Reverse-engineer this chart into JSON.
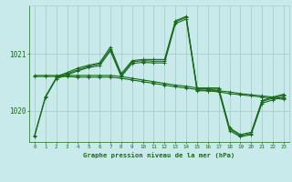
{
  "title": "Graphe pression niveau de la mer (hPa)",
  "bg_color": "#c8eaea",
  "grid_color": "#a8cece",
  "line_color": "#1a6b1a",
  "ylim": [
    1019.45,
    1021.85
  ],
  "yticks": [
    1020,
    1021
  ],
  "xlim": [
    -0.5,
    23.5
  ],
  "xticks": [
    0,
    1,
    2,
    3,
    4,
    5,
    6,
    7,
    8,
    9,
    10,
    11,
    12,
    13,
    14,
    15,
    16,
    17,
    18,
    19,
    20,
    21,
    22,
    23
  ],
  "series": [
    {
      "x": [
        0,
        1,
        2,
        3,
        4,
        5,
        6,
        7,
        8,
        9,
        10,
        11,
        12,
        13,
        14,
        15,
        16,
        17,
        18,
        19,
        20,
        21,
        22,
        23
      ],
      "y": [
        1019.57,
        1020.25,
        1020.58,
        1020.65,
        1020.72,
        1020.78,
        1020.82,
        1021.08,
        1020.62,
        1020.86,
        1020.88,
        1020.87,
        1020.87,
        1021.56,
        1021.64,
        1020.38,
        1020.38,
        1020.38,
        1019.68,
        1019.56,
        1019.6,
        1020.16,
        1020.22,
        1020.27
      ]
    },
    {
      "x": [
        2,
        3,
        4,
        5,
        6,
        7,
        8,
        9,
        10,
        11,
        12,
        13,
        14,
        15,
        16,
        17,
        18,
        19,
        20,
        21,
        22,
        23
      ],
      "y": [
        1020.6,
        1020.67,
        1020.75,
        1020.8,
        1020.84,
        1021.12,
        1020.65,
        1020.88,
        1020.9,
        1020.9,
        1020.9,
        1021.58,
        1021.66,
        1020.4,
        1020.4,
        1020.4,
        1019.7,
        1019.58,
        1019.62,
        1020.18,
        1020.24,
        1020.29
      ]
    },
    {
      "x": [
        0,
        1,
        2,
        3,
        4,
        5,
        6,
        7,
        8,
        9,
        10,
        11,
        12,
        13,
        14,
        15,
        16,
        17,
        18,
        19,
        20,
        21,
        22,
        23
      ],
      "y": [
        1020.62,
        1020.62,
        1020.62,
        1020.62,
        1020.62,
        1020.62,
        1020.62,
        1020.62,
        1020.6,
        1020.57,
        1020.54,
        1020.51,
        1020.48,
        1020.45,
        1020.43,
        1020.4,
        1020.38,
        1020.35,
        1020.33,
        1020.3,
        1020.28,
        1020.26,
        1020.24,
        1020.22
      ]
    },
    {
      "x": [
        0,
        1,
        2,
        3,
        4,
        5,
        6,
        7,
        8,
        9,
        10,
        11,
        12,
        13,
        14,
        15,
        16,
        17,
        18,
        19,
        20,
        21,
        22,
        23
      ],
      "y": [
        1020.6,
        1020.6,
        1020.6,
        1020.6,
        1020.59,
        1020.59,
        1020.59,
        1020.59,
        1020.57,
        1020.54,
        1020.51,
        1020.48,
        1020.45,
        1020.42,
        1020.4,
        1020.37,
        1020.35,
        1020.33,
        1020.3,
        1020.28,
        1020.26,
        1020.24,
        1020.22,
        1020.2
      ]
    },
    {
      "x": [
        0,
        1,
        2,
        3,
        4,
        5,
        6,
        7,
        8,
        9,
        10,
        11,
        12,
        13,
        14,
        15,
        16,
        17,
        18,
        19,
        20,
        21,
        22,
        23
      ],
      "y": [
        1019.55,
        1020.23,
        1020.56,
        1020.63,
        1020.7,
        1020.76,
        1020.79,
        1021.05,
        1020.6,
        1020.83,
        1020.85,
        1020.84,
        1020.84,
        1021.53,
        1021.61,
        1020.35,
        1020.35,
        1020.35,
        1019.65,
        1019.54,
        1019.58,
        1020.13,
        1020.19,
        1020.24
      ]
    }
  ]
}
